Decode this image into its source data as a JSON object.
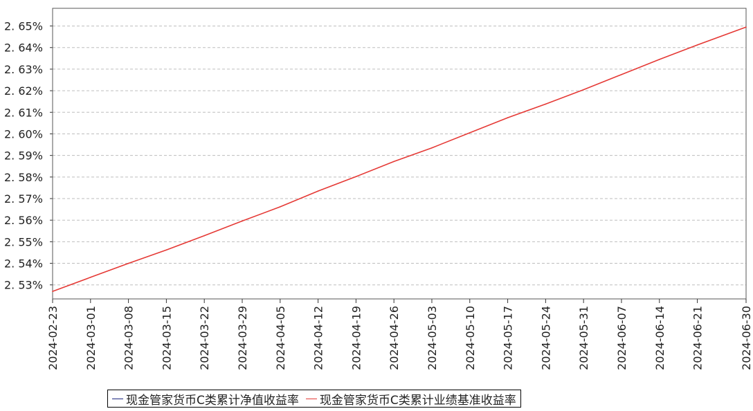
{
  "chart_data": {
    "type": "line",
    "title": "",
    "xlabel": "",
    "ylabel": "",
    "x_tick_labels": [
      "2024-02-23",
      "2024-03-01",
      "2024-03-08",
      "2024-03-15",
      "2024-03-22",
      "2024-03-29",
      "2024-04-05",
      "2024-04-12",
      "2024-04-19",
      "2024-04-26",
      "2024-05-03",
      "2024-05-10",
      "2024-05-17",
      "2024-05-24",
      "2024-05-31",
      "2024-06-07",
      "2024-06-14",
      "2024-06-21",
      "2024-06-30"
    ],
    "y_ticks": [
      2.53,
      2.54,
      2.55,
      2.56,
      2.57,
      2.58,
      2.59,
      2.6,
      2.61,
      2.62,
      2.63,
      2.64,
      2.65
    ],
    "y_tick_labels": [
      "2. 53%",
      "2. 54%",
      "2. 55%",
      "2. 56%",
      "2. 57%",
      "2. 58%",
      "2. 59%",
      "2. 60%",
      "2. 61%",
      "2. 62%",
      "2. 63%",
      "2. 64%",
      "2. 65%"
    ],
    "ylim": [
      2.5235,
      2.6582
    ],
    "xlim": [
      "2024-02-23",
      "2024-06-30"
    ],
    "grid": true,
    "legend_position": "bottom",
    "series": [
      {
        "name": "现金管家货币C类累计净值收益率",
        "color": "#1a237e",
        "x": [],
        "values": []
      },
      {
        "name": "现金管家货币C类累计业绩基准收益率",
        "color": "#e53935",
        "x": [
          "2024-02-23",
          "2024-03-01",
          "2024-03-08",
          "2024-03-15",
          "2024-03-22",
          "2024-03-29",
          "2024-04-05",
          "2024-04-12",
          "2024-04-19",
          "2024-04-26",
          "2024-05-03",
          "2024-05-10",
          "2024-05-17",
          "2024-05-24",
          "2024-05-31",
          "2024-06-07",
          "2024-06-14",
          "2024-06-21",
          "2024-06-30"
        ],
        "values": [
          2.527,
          2.5335,
          2.54,
          2.5462,
          2.5528,
          2.5596,
          2.5662,
          2.5735,
          2.5802,
          2.5872,
          2.5935,
          2.6005,
          2.6075,
          2.6138,
          2.6205,
          2.6275,
          2.6345,
          2.6412,
          2.6495
        ]
      }
    ]
  }
}
